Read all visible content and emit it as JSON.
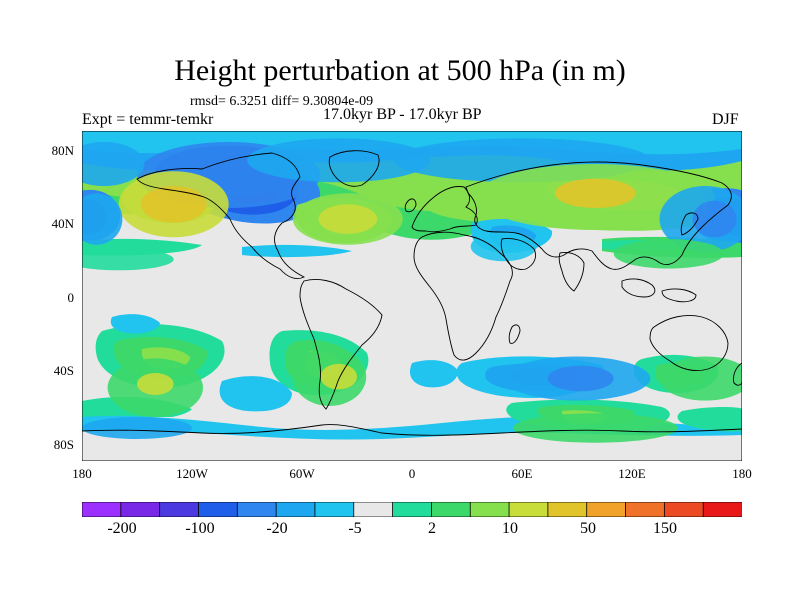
{
  "title": "Height perturbation at 500 hPa (in m)",
  "stats": "rmsd= 6.3251 diff= 9.30804e-09",
  "experiment": "Expt = temmr-temkr",
  "period": "17.0kyr BP - 17.0kyr BP",
  "season": "DJF",
  "lat_labels": [
    "80N",
    "40N",
    "0",
    "40S",
    "80S"
  ],
  "lon_labels": [
    "180",
    "120W",
    "60W",
    "0",
    "60E",
    "120E",
    "180"
  ],
  "colorbar": {
    "colors": [
      "#9b30ff",
      "#7a28e8",
      "#4a3adf",
      "#1e5ee8",
      "#2f86ee",
      "#1ea7f0",
      "#20c4ee",
      "#e8e8e8",
      "#22dc9c",
      "#3cd86a",
      "#86e04e",
      "#c8dc3a",
      "#e0c42a",
      "#f0a22a",
      "#f07228",
      "#ec4a22",
      "#e81818"
    ],
    "labels": [
      "-200",
      "-100",
      "-20",
      "-5",
      "2",
      "10",
      "50",
      "150"
    ]
  },
  "map_anomalies": [
    {
      "lon": -100,
      "lat": 68,
      "w": 40,
      "h": 14,
      "level": 3
    },
    {
      "lon": -100,
      "lat": 66,
      "w": 50,
      "h": 18,
      "level": 4
    },
    {
      "lon": -40,
      "lat": 74,
      "w": 50,
      "h": 12,
      "level": 5
    },
    {
      "lon": 60,
      "lat": 74,
      "w": 70,
      "h": 12,
      "level": 5
    },
    {
      "lon": -168,
      "lat": 72,
      "w": 22,
      "h": 12,
      "level": 5
    },
    {
      "lon": -130,
      "lat": 50,
      "w": 30,
      "h": 18,
      "level": 11
    },
    {
      "lon": -130,
      "lat": 50,
      "w": 18,
      "h": 10,
      "level": 12
    },
    {
      "lon": -35,
      "lat": 42,
      "w": 30,
      "h": 14,
      "level": 10
    },
    {
      "lon": -35,
      "lat": 42,
      "w": 16,
      "h": 8,
      "level": 11
    },
    {
      "lon": 100,
      "lat": 54,
      "w": 65,
      "h": 18,
      "level": 10
    },
    {
      "lon": 100,
      "lat": 56,
      "w": 22,
      "h": 8,
      "level": 12
    },
    {
      "lon": 160,
      "lat": 42,
      "w": 25,
      "h": 18,
      "level": 5
    },
    {
      "lon": 165,
      "lat": 42,
      "w": 12,
      "h": 10,
      "level": 4
    },
    {
      "lon": -172,
      "lat": 42,
      "w": 14,
      "h": 14,
      "level": 5
    },
    {
      "lon": 50,
      "lat": 27,
      "w": 18,
      "h": 8,
      "level": 6
    },
    {
      "lon": 140,
      "lat": 23,
      "w": 30,
      "h": 8,
      "level": 9
    },
    {
      "lon": -160,
      "lat": 20,
      "w": 30,
      "h": 6,
      "level": 8
    },
    {
      "lon": -140,
      "lat": -50,
      "w": 26,
      "h": 16,
      "level": 9
    },
    {
      "lon": -140,
      "lat": -48,
      "w": 10,
      "h": 6,
      "level": 11
    },
    {
      "lon": -45,
      "lat": -44,
      "w": 20,
      "h": 16,
      "level": 9
    },
    {
      "lon": -40,
      "lat": -44,
      "w": 10,
      "h": 7,
      "level": 11
    },
    {
      "lon": 90,
      "lat": -45,
      "w": 40,
      "h": 12,
      "level": 5
    },
    {
      "lon": 92,
      "lat": -45,
      "w": 18,
      "h": 7,
      "level": 4
    },
    {
      "lon": 160,
      "lat": -45,
      "w": 25,
      "h": 12,
      "level": 9
    },
    {
      "lon": 100,
      "lat": -72,
      "w": 45,
      "h": 8,
      "level": 9
    },
    {
      "lon": -150,
      "lat": -72,
      "w": 30,
      "h": 6,
      "level": 5
    }
  ]
}
